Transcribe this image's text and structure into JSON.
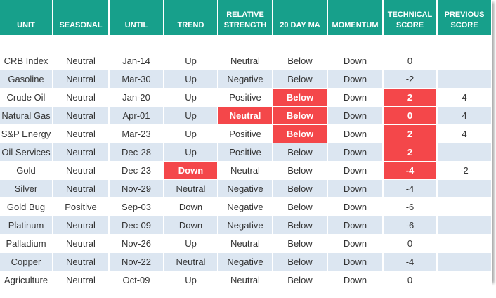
{
  "header": {
    "columns": [
      "UNIT",
      "SEASONAL",
      "UNTIL",
      "TREND",
      "RELATIVE STRENGTH",
      "20 DAY MA",
      "MOMENTUM",
      "TECHNICAL SCORE",
      "PREVIOUS SCORE"
    ]
  },
  "table": {
    "header_color": "#17a08b",
    "stripe_color": "#dce6f1",
    "alert_color": "#f4474a",
    "rows": [
      [
        "CRB Index",
        "Neutral",
        "Jan-14",
        "Up",
        "Neutral",
        "Below",
        "Down",
        0,
        null
      ],
      [
        "Gasoline",
        "Neutral",
        "Mar-30",
        "Up",
        "Negative",
        "Below",
        "Down",
        -2,
        null
      ],
      [
        "Crude Oil",
        "Neutral",
        "Jan-20",
        "Up",
        "Positive",
        {
          "text": "Below",
          "alert": true
        },
        "Down",
        {
          "text": 2,
          "alert": true
        },
        4
      ],
      [
        "Natural Gas",
        "Neutral",
        "Apr-01",
        "Up",
        {
          "text": "Neutral",
          "alert": true
        },
        {
          "text": "Below",
          "alert": true
        },
        "Down",
        {
          "text": 0,
          "alert": true
        },
        4
      ],
      [
        "S&P Energy",
        "Neutral",
        "Mar-23",
        "Up",
        "Positive",
        {
          "text": "Below",
          "alert": true
        },
        "Down",
        {
          "text": 2,
          "alert": true
        },
        4
      ],
      [
        "Oil Services",
        "Neutral",
        "Dec-28",
        "Up",
        "Positive",
        "Below",
        "Down",
        {
          "text": 2,
          "alert": true
        },
        null
      ],
      [
        "Gold",
        "Neutral",
        "Dec-23",
        {
          "text": "Down",
          "alert": true
        },
        "Neutral",
        "Below",
        "Down",
        {
          "text": -4,
          "alert": true
        },
        -2
      ],
      [
        "Silver",
        "Neutral",
        "Nov-29",
        "Neutral",
        "Negative",
        "Below",
        "Down",
        -4,
        null
      ],
      [
        "Gold Bug",
        "Positive",
        "Sep-03",
        "Down",
        "Negative",
        "Below",
        "Down",
        -6,
        null
      ],
      [
        "Platinum",
        "Neutral",
        "Dec-09",
        "Down",
        "Negative",
        "Below",
        "Down",
        -6,
        null
      ],
      [
        "Palladium",
        "Neutral",
        "Nov-26",
        "Up",
        "Neutral",
        "Below",
        "Down",
        0,
        null
      ],
      [
        "Copper",
        "Neutral",
        "Nov-22",
        "Neutral",
        "Negative",
        "Below",
        "Down",
        -4,
        null
      ],
      [
        "Agriculture",
        "Neutral",
        "Oct-09",
        "Up",
        "Neutral",
        "Below",
        "Down",
        0,
        null
      ]
    ]
  }
}
